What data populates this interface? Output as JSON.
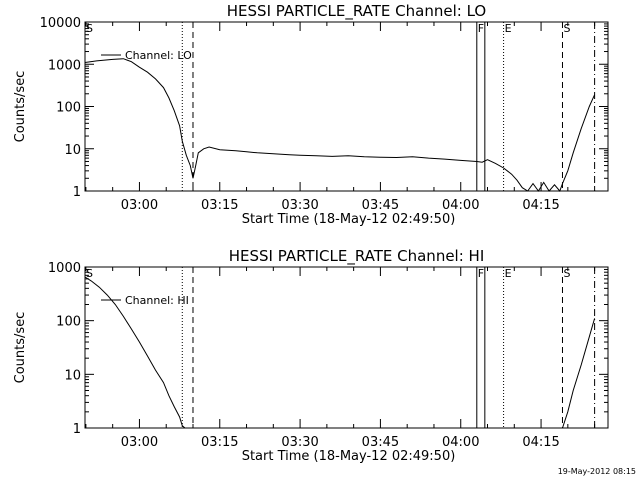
{
  "footer_date": "19-May-2012 08:15",
  "markers": [
    {
      "id": "S",
      "label": "S",
      "time": "02:49:50",
      "style": "none",
      "show_label": true
    },
    {
      "id": "dot1",
      "label": "",
      "time": "03:08:00",
      "style": "dotted",
      "show_label": false
    },
    {
      "id": "dash1",
      "label": "",
      "time": "03:10:00",
      "style": "dashed",
      "show_label": false
    },
    {
      "id": "F1",
      "label": "F",
      "time": "04:03:00",
      "style": "solid",
      "show_label": true
    },
    {
      "id": "F2",
      "label": "",
      "time": "04:04:30",
      "style": "solid",
      "show_label": false
    },
    {
      "id": "E",
      "label": "E",
      "time": "04:08:00",
      "style": "dotted",
      "show_label": true
    },
    {
      "id": "S2",
      "label": "S",
      "time": "04:19:00",
      "style": "dashed",
      "show_label": true
    },
    {
      "id": "dd",
      "label": "",
      "time": "04:25:00",
      "style": "dashdot",
      "show_label": false
    }
  ],
  "chart_data": [
    {
      "type": "line",
      "title": "HESSI PARTICLE_RATE Channel: LO",
      "xlabel": "Start Time (18-May-12 02:49:50)",
      "ylabel": "Counts/sec",
      "legend": "Channel: LO",
      "legend_placement": "top-left",
      "yscale": "log",
      "ylim": [
        1,
        10000
      ],
      "xlim": [
        "02:49:50",
        "04:27:30"
      ],
      "xticks": [
        "03:00",
        "03:15",
        "03:30",
        "03:45",
        "04:00",
        "04:15"
      ],
      "yticks": [
        "1",
        "10",
        "100",
        "1000",
        "10000"
      ],
      "grid": false,
      "series": [
        {
          "name": "Channel: LO",
          "points": [
            [
              "02:49:50",
              1100
            ],
            [
              "02:52:00",
              1200
            ],
            [
              "02:55:00",
              1300
            ],
            [
              "02:57:00",
              1350
            ],
            [
              "02:58:30",
              1150
            ],
            [
              "03:00:00",
              850
            ],
            [
              "03:01:30",
              650
            ],
            [
              "03:03:00",
              450
            ],
            [
              "03:04:30",
              280
            ],
            [
              "03:05:30",
              160
            ],
            [
              "03:06:30",
              80
            ],
            [
              "03:07:30",
              35
            ],
            [
              "03:08:00",
              15
            ],
            [
              "03:08:45",
              7
            ],
            [
              "03:09:30",
              4
            ],
            [
              "03:10:00",
              2
            ],
            [
              "03:10:30",
              4
            ],
            [
              "03:11:00",
              8
            ],
            [
              "03:12:00",
              10
            ],
            [
              "03:13:00",
              11
            ],
            [
              "03:15:00",
              9.5
            ],
            [
              "03:18:00",
              9
            ],
            [
              "03:20:00",
              8.5
            ],
            [
              "03:22:00",
              8
            ],
            [
              "03:25:00",
              7.6
            ],
            [
              "03:28:00",
              7.2
            ],
            [
              "03:30:00",
              7
            ],
            [
              "03:33:00",
              6.8
            ],
            [
              "03:36:00",
              6.6
            ],
            [
              "03:39:00",
              6.8
            ],
            [
              "03:42:00",
              6.5
            ],
            [
              "03:45:00",
              6.3
            ],
            [
              "03:48:00",
              6.2
            ],
            [
              "03:51:00",
              6.5
            ],
            [
              "03:54:00",
              6
            ],
            [
              "03:57:00",
              5.7
            ],
            [
              "04:00:00",
              5.3
            ],
            [
              "04:03:00",
              5
            ],
            [
              "04:04:00",
              4.8
            ],
            [
              "04:05:00",
              5.5
            ],
            [
              "04:06:30",
              4.5
            ],
            [
              "04:08:00",
              3.5
            ],
            [
              "04:09:30",
              2.5
            ],
            [
              "04:10:30",
              1.8
            ],
            [
              "04:11:30",
              1.2
            ],
            [
              "04:12:30",
              1
            ],
            [
              "04:13:30",
              1.5
            ],
            [
              "04:14:30",
              1
            ],
            [
              "04:15:30",
              1.6
            ],
            [
              "04:16:30",
              1
            ],
            [
              "04:17:30",
              1.4
            ],
            [
              "04:18:30",
              1
            ],
            [
              "04:19:00",
              1.5
            ],
            [
              "04:20:00",
              3
            ],
            [
              "04:21:00",
              8
            ],
            [
              "04:22:30",
              30
            ],
            [
              "04:24:00",
              100
            ],
            [
              "04:25:00",
              190
            ]
          ]
        }
      ]
    },
    {
      "type": "line",
      "title": "HESSI PARTICLE_RATE Channel: HI",
      "xlabel": "Start Time (18-May-12 02:49:50)",
      "ylabel": "Counts/sec",
      "legend": "Channel: HI",
      "legend_placement": "top-left",
      "yscale": "log",
      "ylim": [
        1,
        1000
      ],
      "xlim": [
        "02:49:50",
        "04:27:30"
      ],
      "xticks": [
        "03:00",
        "03:15",
        "03:30",
        "03:45",
        "04:00",
        "04:15"
      ],
      "yticks": [
        "1",
        "10",
        "100",
        "1000"
      ],
      "grid": false,
      "series": [
        {
          "name": "Channel: HI",
          "points": [
            [
              "02:49:50",
              650
            ],
            [
              "02:51:00",
              550
            ],
            [
              "02:52:30",
              420
            ],
            [
              "02:54:00",
              300
            ],
            [
              "02:55:30",
              200
            ],
            [
              "02:57:00",
              120
            ],
            [
              "02:58:30",
              70
            ],
            [
              "03:00:00",
              40
            ],
            [
              "03:01:30",
              22
            ],
            [
              "03:03:00",
              12
            ],
            [
              "03:04:30",
              7
            ],
            [
              "03:05:30",
              4
            ],
            [
              "03:06:30",
              2.5
            ],
            [
              "03:07:30",
              1.6
            ],
            [
              "03:08:00",
              1.1
            ],
            [
              "03:08:30",
              1
            ],
            [
              "04:19:00",
              1
            ],
            [
              "04:20:00",
              2
            ],
            [
              "04:21:00",
              5
            ],
            [
              "04:22:30",
              15
            ],
            [
              "04:24:00",
              50
            ],
            [
              "04:25:00",
              110
            ]
          ]
        }
      ]
    }
  ]
}
